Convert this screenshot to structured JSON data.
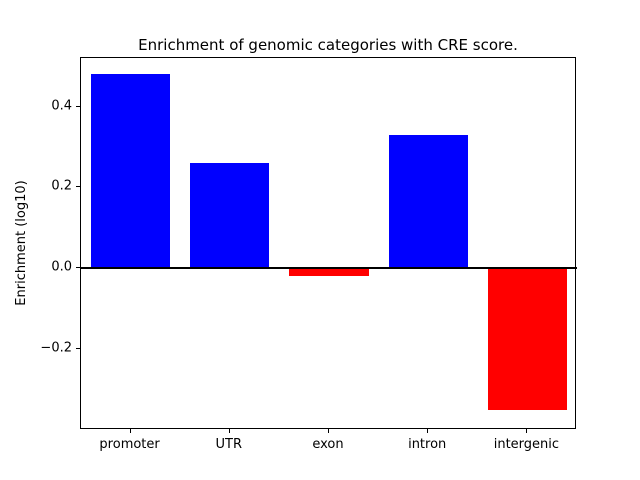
{
  "chart_data": {
    "type": "bar",
    "title": "Enrichment of genomic categories with CRE score.",
    "ylabel": "Enrichment (log10)",
    "xlabel": "",
    "categories": [
      "promoter",
      "UTR",
      "exon",
      "intron",
      "intergenic"
    ],
    "values": [
      0.48,
      0.26,
      -0.02,
      0.33,
      -0.35
    ],
    "ylim": [
      -0.4,
      0.52
    ],
    "yticks": [
      -0.2,
      0.0,
      0.2,
      0.4
    ],
    "ytick_labels": [
      "−0.2",
      "0.0",
      "0.2",
      "0.4"
    ],
    "positive_color": "#0000ff",
    "negative_color": "#ff0000",
    "zero_line_color": "#000000",
    "bar_width_fraction": 0.8,
    "grid": false,
    "legend": null
  }
}
